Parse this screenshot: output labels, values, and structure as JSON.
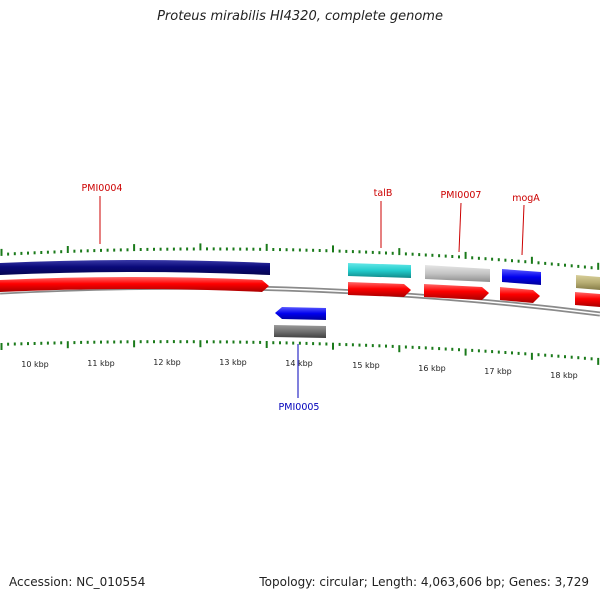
{
  "map": {
    "title": "Proteus mirabilis HI4320, complete genome",
    "accession": "Accession: NC_010554",
    "summary": "Topology: circular; Length: 4,063,606 bp; Genes: 3,729",
    "scale_labels": [
      "10 kbp",
      "11 kbp",
      "12 kbp",
      "13 kbp",
      "14 kbp",
      "15 kbp",
      "16 kbp",
      "17 kbp",
      "18 kbp"
    ],
    "gene_labels": [
      {
        "name": "PMI0004",
        "color": "#cc0000"
      },
      {
        "name": "PMI0005",
        "color": "#0000bb"
      },
      {
        "name": "talB",
        "color": "#cc0000"
      },
      {
        "name": "PMI0007",
        "color": "#cc0000"
      },
      {
        "name": "mogA",
        "color": "#cc0000"
      }
    ],
    "colors": {
      "cds_red": "#ff0000",
      "navy": "#0a0a7a",
      "cyan": "#22cccc",
      "light_gray": "#c4c4c4",
      "blue": "#0000ee",
      "dark_gray": "#707070",
      "khaki": "#b8ae74",
      "backbone": "#8a8a8a",
      "tick_green": "#1a7a1a"
    }
  }
}
